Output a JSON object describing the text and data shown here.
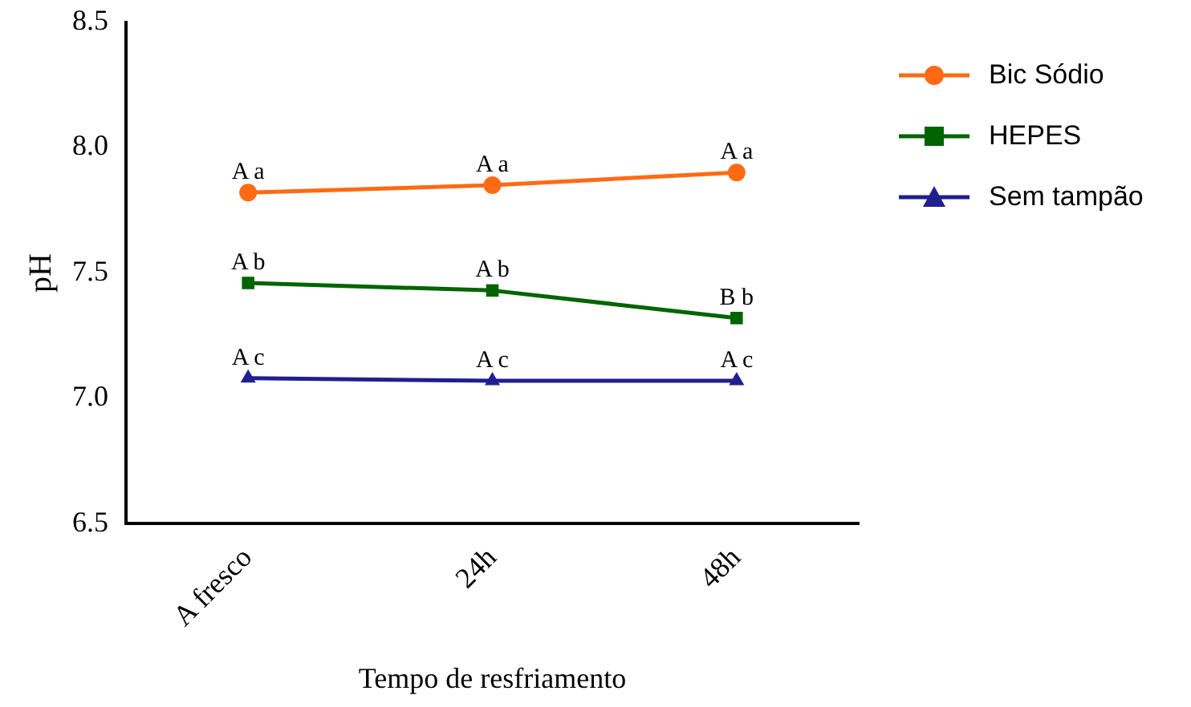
{
  "chart_data": {
    "type": "line",
    "xlabel": "Tempo de resfriamento",
    "ylabel": "pH",
    "categories": [
      "A fresco",
      "24h",
      "48h"
    ],
    "series": [
      {
        "name": "Bic Sódio",
        "color": "#ff6a13",
        "marker": "circle",
        "values": [
          7.82,
          7.85,
          7.9
        ]
      },
      {
        "name": "HEPES",
        "color": "#006400",
        "marker": "square",
        "values": [
          7.46,
          7.43,
          7.32
        ]
      },
      {
        "name": "Sem tampão",
        "color": "#1f1f8f",
        "marker": "triangle",
        "values": [
          7.08,
          7.07,
          7.07
        ]
      }
    ],
    "ylim": [
      6.5,
      8.5
    ],
    "yticks": [
      {
        "value": 6.5,
        "label": "6.5"
      },
      {
        "value": 7,
        "label": "7.0"
      },
      {
        "value": 7.5,
        "label": "7.5"
      },
      {
        "value": 8,
        "label": "8.0"
      },
      {
        "value": 8.5,
        "label": "8.5"
      }
    ],
    "grid": false,
    "legend": "right",
    "line_style": "solid",
    "annotations": [
      {
        "text": "A a",
        "x": "A fresco",
        "y": 7.82
      },
      {
        "text": "A a",
        "x": "24h",
        "y": 7.85
      },
      {
        "text": "A a",
        "x": "48h",
        "y": 7.9
      },
      {
        "text": "A b",
        "x": "A fresco",
        "y": 7.46
      },
      {
        "text": "A b",
        "x": "24h",
        "y": 7.43
      },
      {
        "text": "B b",
        "x": "48h",
        "y": 7.32
      },
      {
        "text": "A c",
        "x": "A fresco",
        "y": 7.08
      },
      {
        "text": "A c",
        "x": "24h",
        "y": 7.07
      },
      {
        "text": "A c",
        "x": "48h",
        "y": 7.07
      }
    ]
  }
}
